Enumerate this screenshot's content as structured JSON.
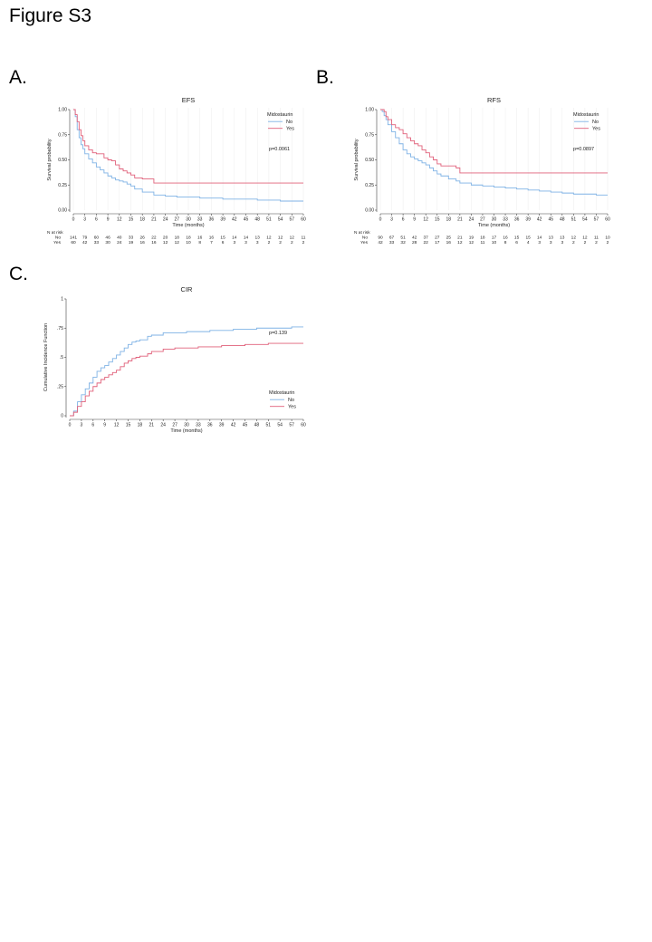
{
  "figure_title": "Figure S3",
  "panels": {
    "A": "A.",
    "B": "B.",
    "C": "C."
  },
  "colors": {
    "no": "#7fb2e5",
    "yes": "#e0607a",
    "grid": "#efefef",
    "axis": "#444444"
  },
  "chart_data": [
    {
      "id": "efs",
      "type": "line",
      "title": "EFS",
      "xlabel": "Time (months)",
      "ylabel": "Survival probability",
      "xlim": [
        0,
        60
      ],
      "ylim": [
        0,
        1
      ],
      "x_ticks": [
        "0",
        "3",
        "6",
        "9",
        "12",
        "15",
        "18",
        "21",
        "24",
        "27",
        "30",
        "33",
        "36",
        "39",
        "42",
        "45",
        "48",
        "51",
        "54",
        "57",
        "60"
      ],
      "y_ticks": [
        "0.00",
        "0.25",
        "0.50",
        "0.75",
        "1.00"
      ],
      "legend_title": "Midostaurin",
      "legend_position": "top-right",
      "annotation": "p=0.0061",
      "grid": "vertical",
      "series": [
        {
          "name": "No",
          "color_key": "no",
          "step": "down",
          "x": [
            0,
            0.5,
            1,
            1.5,
            2,
            2.5,
            3,
            4,
            5,
            6,
            7,
            8,
            9,
            10,
            11,
            12,
            13,
            14,
            15,
            16,
            18,
            21,
            24,
            27,
            30,
            33,
            36,
            39,
            42,
            45,
            48,
            51,
            54,
            57,
            60
          ],
          "y": [
            1.0,
            0.93,
            0.8,
            0.72,
            0.65,
            0.61,
            0.56,
            0.51,
            0.47,
            0.43,
            0.4,
            0.37,
            0.34,
            0.32,
            0.3,
            0.29,
            0.28,
            0.26,
            0.24,
            0.21,
            0.18,
            0.15,
            0.14,
            0.13,
            0.13,
            0.12,
            0.12,
            0.11,
            0.11,
            0.11,
            0.1,
            0.1,
            0.09,
            0.09,
            0.09
          ]
        },
        {
          "name": "Yes",
          "color_key": "yes",
          "step": "down",
          "x": [
            0,
            0.5,
            1,
            1.5,
            2,
            2.5,
            3,
            4,
            5,
            6,
            7,
            8,
            9,
            10,
            11,
            12,
            13,
            14,
            15,
            16,
            18,
            21,
            24,
            27,
            30,
            33,
            36,
            39,
            42,
            45,
            48,
            51,
            54,
            57,
            60
          ],
          "y": [
            1.0,
            0.95,
            0.88,
            0.8,
            0.74,
            0.69,
            0.64,
            0.6,
            0.57,
            0.56,
            0.56,
            0.52,
            0.5,
            0.49,
            0.45,
            0.41,
            0.39,
            0.37,
            0.35,
            0.32,
            0.31,
            0.27,
            0.27,
            0.27,
            0.27,
            0.27,
            0.27,
            0.27,
            0.27,
            0.27,
            0.27,
            0.27,
            0.27,
            0.27,
            0.27
          ]
        }
      ],
      "risk_table": {
        "header": "N at risk",
        "rows": [
          {
            "label": "No",
            "values": [
              "141",
              "79",
              "60",
              "46",
              "40",
              "33",
              "26",
              "22",
              "20",
              "18",
              "18",
              "16",
              "16",
              "15",
              "14",
              "14",
              "13",
              "12",
              "12",
              "12",
              "11"
            ]
          },
          {
            "label": "Yes",
            "values": [
              "60",
              "42",
              "33",
              "30",
              "24",
              "19",
              "16",
              "16",
              "12",
              "12",
              "10",
              "8",
              "7",
              "6",
              "3",
              "3",
              "3",
              "2",
              "2",
              "2",
              "2"
            ]
          }
        ]
      }
    },
    {
      "id": "rfs",
      "type": "line",
      "title": "RFS",
      "xlabel": "Time (months)",
      "ylabel": "Survival probability",
      "xlim": [
        0,
        60
      ],
      "ylim": [
        0,
        1
      ],
      "x_ticks": [
        "0",
        "3",
        "6",
        "9",
        "12",
        "15",
        "18",
        "21",
        "24",
        "27",
        "30",
        "33",
        "36",
        "39",
        "42",
        "45",
        "48",
        "51",
        "54",
        "57",
        "60"
      ],
      "y_ticks": [
        "0.00",
        "0.25",
        "0.50",
        "0.75",
        "1.00"
      ],
      "legend_title": "Midostaurin",
      "legend_position": "top-right",
      "annotation": "p=0.0897",
      "grid": "vertical",
      "series": [
        {
          "name": "No",
          "color_key": "no",
          "step": "down",
          "x": [
            0,
            0.5,
            1,
            1.5,
            2,
            3,
            4,
            5,
            6,
            7,
            8,
            9,
            10,
            11,
            12,
            13,
            14,
            15,
            16,
            18,
            20,
            21,
            24,
            27,
            30,
            33,
            36,
            39,
            42,
            45,
            48,
            51,
            54,
            57,
            60
          ],
          "y": [
            1.0,
            0.98,
            0.94,
            0.9,
            0.85,
            0.78,
            0.72,
            0.66,
            0.6,
            0.56,
            0.53,
            0.51,
            0.49,
            0.47,
            0.45,
            0.42,
            0.39,
            0.36,
            0.34,
            0.31,
            0.29,
            0.27,
            0.25,
            0.24,
            0.23,
            0.22,
            0.21,
            0.2,
            0.19,
            0.18,
            0.17,
            0.16,
            0.16,
            0.15,
            0.15
          ]
        },
        {
          "name": "Yes",
          "color_key": "yes",
          "step": "down",
          "x": [
            0,
            0.5,
            1,
            1.5,
            2,
            3,
            4,
            5,
            6,
            7,
            8,
            9,
            10,
            11,
            12,
            13,
            14,
            15,
            16,
            18,
            20,
            21,
            24,
            27,
            30,
            33,
            36,
            39,
            42,
            45,
            48,
            51,
            54,
            57,
            60
          ],
          "y": [
            1.0,
            1.0,
            0.98,
            0.93,
            0.9,
            0.85,
            0.82,
            0.8,
            0.76,
            0.72,
            0.69,
            0.66,
            0.64,
            0.6,
            0.57,
            0.53,
            0.5,
            0.46,
            0.44,
            0.44,
            0.42,
            0.37,
            0.37,
            0.37,
            0.37,
            0.37,
            0.37,
            0.37,
            0.37,
            0.37,
            0.37,
            0.37,
            0.37,
            0.37,
            0.37
          ]
        }
      ],
      "risk_table": {
        "header": "N at risk",
        "rows": [
          {
            "label": "No",
            "values": [
              "90",
              "67",
              "51",
              "42",
              "37",
              "27",
              "25",
              "21",
              "19",
              "18",
              "17",
              "16",
              "15",
              "15",
              "14",
              "13",
              "13",
              "12",
              "12",
              "11",
              "10"
            ]
          },
          {
            "label": "Yes",
            "values": [
              "42",
              "33",
              "32",
              "28",
              "22",
              "17",
              "16",
              "12",
              "12",
              "11",
              "10",
              "8",
              "6",
              "4",
              "3",
              "3",
              "3",
              "2",
              "2",
              "2",
              "2"
            ]
          }
        ]
      }
    },
    {
      "id": "cir",
      "type": "line",
      "title": "CIR",
      "xlabel": "Time (months)",
      "ylabel": "Cumulative Incidence Function",
      "xlim": [
        0,
        60
      ],
      "ylim": [
        0,
        1
      ],
      "x_ticks": [
        "0",
        "3",
        "6",
        "9",
        "12",
        "15",
        "18",
        "21",
        "24",
        "27",
        "30",
        "33",
        "36",
        "39",
        "42",
        "45",
        "48",
        "51",
        "54",
        "57",
        "60"
      ],
      "y_ticks": [
        "0",
        ".25",
        ".5",
        ".75",
        "1"
      ],
      "legend_title": "Midostaurin",
      "legend_position": "bottom-right",
      "annotation": "p=0.139",
      "grid": "none",
      "series": [
        {
          "name": "No",
          "color_key": "no",
          "step": "up",
          "x": [
            0,
            1,
            2,
            3,
            4,
            5,
            6,
            7,
            8,
            9,
            10,
            11,
            12,
            13,
            14,
            15,
            16,
            17,
            18,
            20,
            21,
            24,
            27,
            30,
            33,
            36,
            39,
            42,
            45,
            48,
            51,
            54,
            57,
            60
          ],
          "y": [
            0,
            0.04,
            0.12,
            0.18,
            0.23,
            0.28,
            0.33,
            0.38,
            0.41,
            0.43,
            0.46,
            0.49,
            0.52,
            0.55,
            0.58,
            0.61,
            0.63,
            0.64,
            0.65,
            0.68,
            0.69,
            0.71,
            0.71,
            0.72,
            0.72,
            0.73,
            0.73,
            0.74,
            0.74,
            0.75,
            0.75,
            0.75,
            0.76,
            0.76
          ]
        },
        {
          "name": "Yes",
          "color_key": "yes",
          "step": "up",
          "x": [
            0,
            1,
            2,
            3,
            4,
            5,
            6,
            7,
            8,
            9,
            10,
            11,
            12,
            13,
            14,
            15,
            16,
            17,
            18,
            20,
            21,
            24,
            27,
            30,
            33,
            36,
            39,
            42,
            45,
            48,
            51,
            54,
            57,
            60
          ],
          "y": [
            0,
            0.03,
            0.08,
            0.12,
            0.17,
            0.21,
            0.25,
            0.28,
            0.31,
            0.33,
            0.35,
            0.37,
            0.39,
            0.42,
            0.45,
            0.47,
            0.49,
            0.5,
            0.51,
            0.53,
            0.55,
            0.57,
            0.58,
            0.58,
            0.59,
            0.59,
            0.6,
            0.6,
            0.61,
            0.61,
            0.62,
            0.62,
            0.62,
            0.62
          ]
        }
      ]
    }
  ]
}
